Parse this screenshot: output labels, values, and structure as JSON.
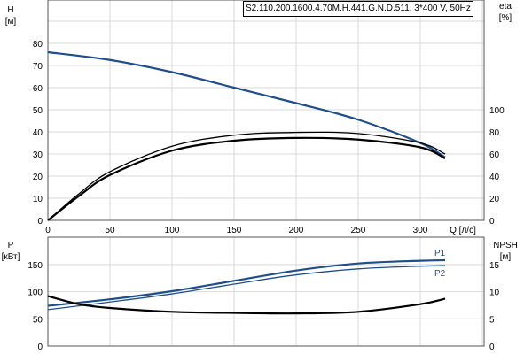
{
  "title": "S2.110.200.1600.4.70M.H.441.G.N.D.511, 3*400 V, 50Hz",
  "colors": {
    "head": "#1f4e8c",
    "power": "#1f4e8c",
    "eta": "#000000",
    "npsh": "#000000",
    "grid": "#d9d9d9"
  },
  "chart_data": [
    {
      "type": "line",
      "xlabel": "Q [л/с]",
      "ylabel": "H",
      "yunit": "[м]",
      "y2label": "eta",
      "y2unit": "[%]",
      "xlim": [
        0,
        340
      ],
      "ylim": [
        0,
        90
      ],
      "y2lim": [
        0,
        100
      ],
      "xticks": [
        0,
        50,
        100,
        150,
        200,
        250,
        300
      ],
      "yticks": [
        0,
        10,
        20,
        30,
        40,
        50,
        60,
        70,
        80
      ],
      "y2ticks": [
        0,
        20,
        40,
        60,
        80,
        100
      ],
      "grid": true,
      "series": [
        {
          "axis": "H",
          "color": "#1f4e8c",
          "x": [
            0,
            50,
            100,
            150,
            200,
            250,
            300,
            320
          ],
          "y": [
            76,
            72.5,
            67,
            60,
            53,
            45.5,
            35,
            28.5
          ]
        },
        {
          "axis": "eta",
          "color": "#000000",
          "x": [
            0,
            25,
            50,
            100,
            150,
            200,
            250,
            300,
            320
          ],
          "y": [
            0,
            24,
            44,
            67,
            77,
            79.5,
            78.5,
            70,
            60
          ]
        },
        {
          "axis": "eta",
          "color": "#000000",
          "x": [
            0,
            25,
            50,
            100,
            150,
            200,
            250,
            300,
            320
          ],
          "y": [
            0,
            22,
            41,
            63,
            72,
            74.5,
            73,
            66,
            56
          ]
        }
      ]
    },
    {
      "type": "line",
      "ylabel": "P",
      "yunit": "[кВт]",
      "y2label": "NPSH",
      "y2unit": "[м]",
      "xlim": [
        0,
        340
      ],
      "ylim": [
        0,
        200
      ],
      "y2lim": [
        0,
        20
      ],
      "xticks": [
        0,
        50,
        100,
        150,
        200,
        250,
        300
      ],
      "yticks": [
        0,
        50,
        100,
        150
      ],
      "y2ticks": [
        0,
        5,
        10,
        15
      ],
      "grid": true,
      "series": [
        {
          "name": "P1",
          "axis": "P",
          "color": "#1f4e8c",
          "x": [
            0,
            50,
            100,
            150,
            200,
            250,
            300,
            320
          ],
          "y": [
            74,
            86,
            101,
            120,
            139,
            152,
            157,
            158
          ]
        },
        {
          "name": "P2",
          "axis": "P",
          "color": "#1f4e8c",
          "x": [
            0,
            50,
            100,
            150,
            200,
            250,
            300,
            320
          ],
          "y": [
            67,
            81,
            96,
            114,
            131,
            142,
            147,
            148
          ]
        },
        {
          "axis": "NPSH",
          "color": "#000000",
          "x": [
            0,
            25,
            50,
            100,
            150,
            200,
            250,
            300,
            320
          ],
          "y": [
            9.2,
            7.7,
            7.0,
            6.3,
            6.1,
            6.0,
            6.3,
            7.7,
            8.7
          ]
        }
      ]
    }
  ]
}
